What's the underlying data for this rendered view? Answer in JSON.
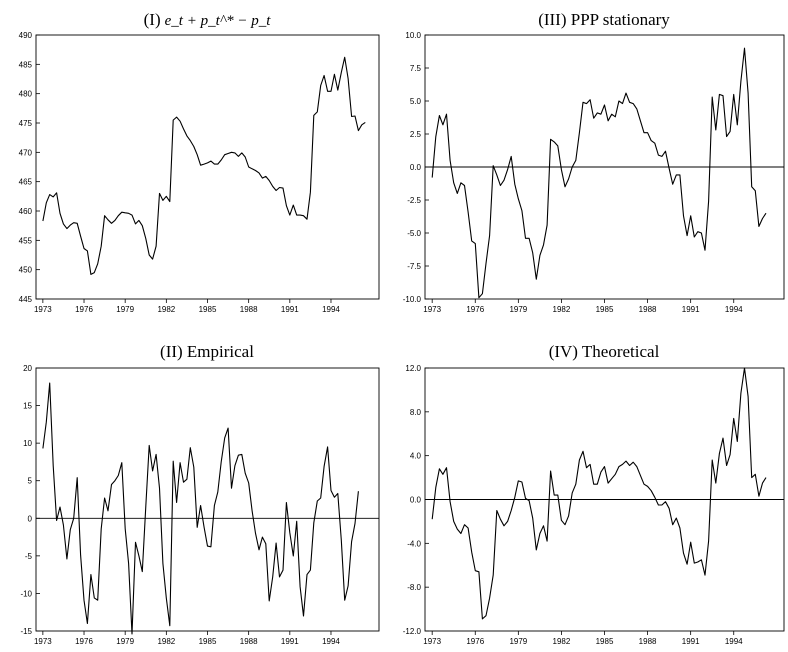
{
  "chart_data": [
    {
      "type": "line",
      "title": "(I) e_t + p*_t − p_t",
      "title_parts": {
        "prefix": "(I)",
        "expr": "e_t + p_t^* − p_t"
      },
      "xlabel": "",
      "ylabel": "",
      "xlim": [
        1972.5,
        1997.5
      ],
      "ylim": [
        445,
        490
      ],
      "yticks": [
        445,
        450,
        455,
        460,
        465,
        470,
        475,
        480,
        485,
        490
      ],
      "ytick_labels": [
        "445",
        "450",
        "455",
        "460",
        "465",
        "470",
        "475",
        "480",
        "485",
        "490"
      ],
      "xticks": [
        1973,
        1976,
        1979,
        1982,
        1985,
        1988,
        1991,
        1994
      ],
      "xtick_labels": [
        "1973",
        "1976",
        "1979",
        "1982",
        "1985",
        "1988",
        "1991",
        "1994"
      ],
      "zero_line": false,
      "grid": false,
      "series": [
        {
          "x_start": 1973.0,
          "x_step": 0.25,
          "values": [
            458.3,
            461.4,
            462.8,
            462.4,
            463.1,
            459.6,
            457.8,
            457.0,
            457.6,
            458.0,
            457.9,
            455.7,
            453.6,
            453.2,
            449.2,
            449.5,
            451.0,
            454.0,
            459.2,
            458.5,
            457.9,
            458.4,
            459.2,
            459.8,
            459.7,
            459.6,
            459.3,
            457.8,
            458.4,
            457.5,
            455.3,
            452.5,
            451.8,
            454.0,
            463.0,
            461.8,
            462.5,
            461.6,
            475.5,
            476.0,
            475.3,
            474.0,
            472.8,
            472.0,
            471.0,
            469.6,
            467.8,
            468.0,
            468.2,
            468.5,
            468.0,
            468.0,
            468.7,
            469.6,
            469.8,
            470.0,
            469.9,
            469.3,
            469.9,
            469.2,
            467.5,
            467.2,
            466.9,
            466.5,
            465.6,
            465.9,
            465.2,
            464.2,
            463.5,
            464.0,
            463.9,
            460.9,
            459.3,
            461.0,
            459.3,
            459.3,
            459.2,
            458.6,
            463.2,
            476.3,
            476.9,
            481.4,
            483.1,
            480.4,
            480.4,
            483.3,
            480.6,
            483.6,
            486.2,
            482.6,
            476.1,
            476.2,
            473.7,
            474.7,
            475.1
          ]
        }
      ]
    },
    {
      "type": "line",
      "title": "(III) PPP stationary",
      "xlabel": "",
      "ylabel": "",
      "xlim": [
        1972.5,
        1997.5
      ],
      "ylim": [
        -10.0,
        10.0
      ],
      "yticks": [
        -10.0,
        -7.5,
        -5.0,
        -2.5,
        0.0,
        2.5,
        5.0,
        7.5,
        10.0
      ],
      "ytick_labels": [
        "-10.0",
        "-7.5",
        "-5.0",
        "-2.5",
        "0.0",
        "2.5",
        "5.0",
        "7.5",
        "10.0"
      ],
      "xticks": [
        1973,
        1976,
        1979,
        1982,
        1985,
        1988,
        1991,
        1994
      ],
      "xtick_labels": [
        "1973",
        "1976",
        "1979",
        "1982",
        "1985",
        "1988",
        "1991",
        "1994"
      ],
      "zero_line": true,
      "grid": false,
      "series": [
        {
          "x_start": 1973.0,
          "x_step": 0.25,
          "values": [
            -0.8,
            2.3,
            3.9,
            3.2,
            4.0,
            0.5,
            -1.2,
            -2.0,
            -1.2,
            -1.4,
            -3.4,
            -5.6,
            -5.8,
            -9.9,
            -9.6,
            -7.3,
            -5.2,
            0.1,
            -0.6,
            -1.4,
            -1.0,
            -0.2,
            0.8,
            -1.3,
            -2.4,
            -3.3,
            -5.4,
            -5.4,
            -6.5,
            -8.5,
            -6.7,
            -5.9,
            -4.4,
            2.1,
            1.9,
            1.6,
            -0.2,
            -1.5,
            -0.9,
            0.0,
            0.5,
            2.6,
            4.9,
            4.8,
            5.1,
            3.7,
            4.1,
            4.0,
            4.7,
            3.5,
            4.0,
            3.8,
            5.0,
            4.8,
            5.6,
            4.9,
            4.8,
            4.4,
            3.5,
            2.6,
            2.6,
            2.0,
            1.8,
            0.9,
            0.8,
            1.2,
            -0.1,
            -1.3,
            -0.6,
            -0.6,
            -3.7,
            -5.2,
            -3.7,
            -5.3,
            -4.9,
            -5.0,
            -6.3,
            -2.6,
            5.3,
            2.8,
            5.5,
            5.4,
            2.3,
            2.7,
            5.5,
            3.2,
            6.5,
            9.0,
            5.6,
            -1.5,
            -1.8,
            -4.5,
            -3.9,
            -3.5
          ]
        }
      ]
    },
    {
      "type": "line",
      "title": "(II) Empirical",
      "xlabel": "",
      "ylabel": "",
      "xlim": [
        1972.5,
        1997.5
      ],
      "ylim": [
        -15,
        20
      ],
      "yticks": [
        -15,
        -10,
        -5,
        0,
        5,
        10,
        15,
        20
      ],
      "ytick_labels": [
        "-15",
        "-10",
        "-5",
        "0",
        "5",
        "10",
        "15",
        "20"
      ],
      "xticks": [
        1973,
        1976,
        1979,
        1982,
        1985,
        1988,
        1991,
        1994
      ],
      "xtick_labels": [
        "1973",
        "1976",
        "1979",
        "1982",
        "1985",
        "1988",
        "1991",
        "1994"
      ],
      "zero_line": true,
      "grid": false,
      "series": [
        {
          "x_start": 1973.0,
          "x_step": 0.25,
          "values": [
            9.3,
            12.8,
            18.0,
            7.0,
            -0.3,
            1.5,
            -0.9,
            -5.4,
            -1.5,
            0.0,
            5.4,
            -4.9,
            -10.9,
            -14.0,
            -7.5,
            -10.6,
            -10.9,
            -1.4,
            2.7,
            1.0,
            4.5,
            5.0,
            5.7,
            7.4,
            -1.4,
            -6.0,
            -15.4,
            -3.2,
            -5.0,
            -7.1,
            1.6,
            9.7,
            6.3,
            8.5,
            4.0,
            -6.0,
            -10.6,
            -14.3,
            7.6,
            2.1,
            7.4,
            4.8,
            5.2,
            9.4,
            6.8,
            -1.2,
            1.7,
            -1.2,
            -3.7,
            -3.8,
            1.7,
            3.5,
            7.5,
            10.7,
            12.0,
            4.0,
            7.0,
            8.4,
            8.5,
            6.0,
            4.7,
            1.0,
            -2.0,
            -4.2,
            -2.5,
            -3.4,
            -11.0,
            -7.8,
            -3.3,
            -7.8,
            -6.9,
            2.1,
            -1.9,
            -5.0,
            -0.4,
            -9.1,
            -13.0,
            -7.5,
            -6.9,
            -0.6,
            2.3,
            2.7,
            6.9,
            9.5,
            3.7,
            2.8,
            3.3,
            -2.9,
            -10.9,
            -9.0,
            -3.1,
            -0.7,
            3.6
          ]
        }
      ]
    },
    {
      "type": "line",
      "title": "(IV) Theoretical",
      "xlabel": "",
      "ylabel": "",
      "xlim": [
        1972.5,
        1997.5
      ],
      "ylim": [
        -12.0,
        12.0
      ],
      "yticks": [
        -12.0,
        -8.0,
        -4.0,
        0.0,
        4.0,
        8.0,
        12.0
      ],
      "ytick_labels": [
        "-12.0",
        "-8.0",
        "-4.0",
        "0.0",
        "4.0",
        "8.0",
        "12.0"
      ],
      "xticks": [
        1973,
        1976,
        1979,
        1982,
        1985,
        1988,
        1991,
        1994
      ],
      "xtick_labels": [
        "1973",
        "1976",
        "1979",
        "1982",
        "1985",
        "1988",
        "1991",
        "1994"
      ],
      "zero_line": true,
      "grid": false,
      "series": [
        {
          "x_start": 1973.0,
          "x_step": 0.25,
          "values": [
            -1.8,
            1.1,
            2.8,
            2.3,
            2.9,
            -0.2,
            -2.0,
            -2.7,
            -3.1,
            -2.3,
            -2.6,
            -4.8,
            -6.5,
            -6.6,
            -10.9,
            -10.6,
            -9.0,
            -6.9,
            -1.0,
            -1.8,
            -2.4,
            -2.0,
            -1.0,
            0.2,
            1.7,
            1.6,
            0.1,
            -0.1,
            -1.7,
            -4.6,
            -3.1,
            -2.4,
            -3.8,
            2.6,
            0.4,
            0.4,
            -1.9,
            -2.3,
            -1.5,
            0.6,
            1.4,
            3.6,
            4.4,
            2.9,
            3.2,
            1.4,
            1.4,
            2.5,
            3.0,
            1.5,
            1.9,
            2.3,
            3.0,
            3.2,
            3.5,
            3.1,
            3.4,
            3.0,
            2.2,
            1.4,
            1.2,
            0.8,
            0.2,
            -0.5,
            -0.5,
            -0.2,
            -0.8,
            -2.3,
            -1.7,
            -2.6,
            -4.9,
            -5.9,
            -3.9,
            -5.8,
            -5.7,
            -5.5,
            -6.9,
            -3.8,
            3.6,
            1.5,
            4.2,
            5.6,
            3.1,
            4.1,
            7.4,
            5.3,
            9.7,
            12.0,
            9.4,
            2.0,
            2.3,
            0.3,
            1.5,
            2.0
          ]
        }
      ]
    }
  ]
}
